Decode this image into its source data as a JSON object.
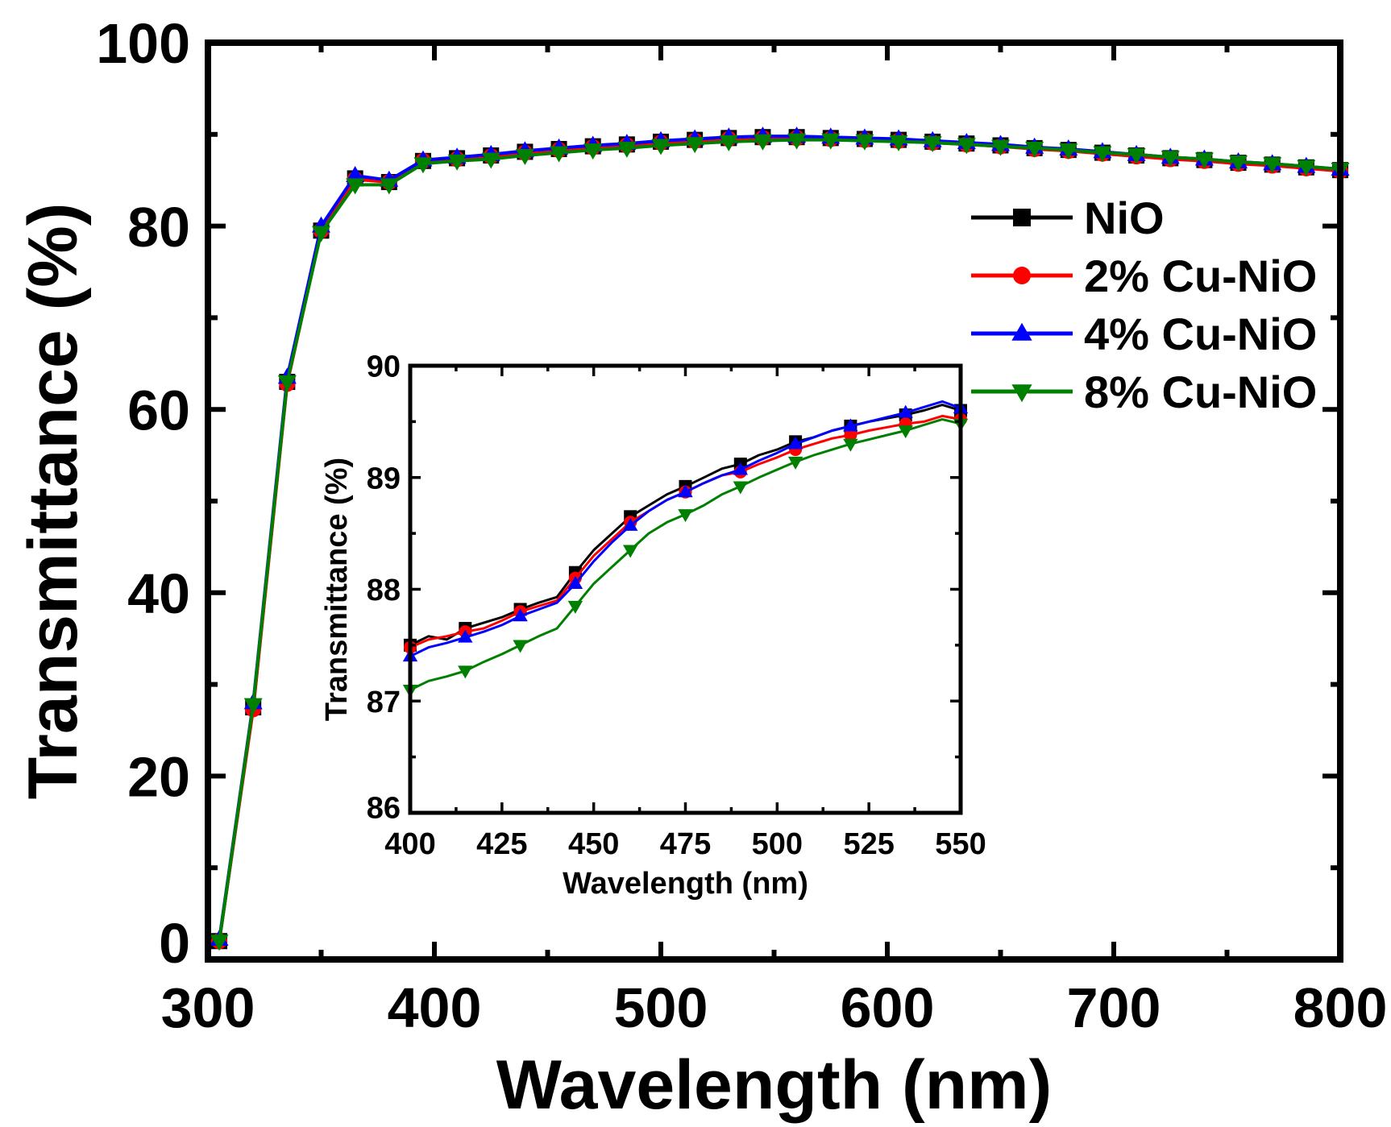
{
  "chart_data": [
    {
      "type": "line",
      "title": "",
      "xlabel": "Wavelength (nm)",
      "ylabel": "Transmittance (%)",
      "xlim": [
        300,
        800
      ],
      "ylim": [
        0,
        100
      ],
      "xticks": [
        300,
        400,
        500,
        600,
        700,
        800
      ],
      "yticks": [
        0,
        20,
        40,
        60,
        80,
        100
      ],
      "grid": false,
      "legend_position": "right",
      "x": [
        305,
        320,
        335,
        350,
        365,
        380,
        395,
        410,
        425,
        440,
        455,
        470,
        485,
        500,
        515,
        530,
        545,
        560,
        575,
        590,
        605,
        620,
        635,
        650,
        665,
        680,
        695,
        710,
        725,
        740,
        755,
        770,
        785,
        800
      ],
      "series": [
        {
          "name": "NiO",
          "color": "#000000",
          "marker": "square",
          "values": [
            2,
            27.5,
            63,
            79.5,
            85.2,
            84.8,
            87.1,
            87.4,
            87.7,
            88.1,
            88.4,
            88.7,
            88.9,
            89.2,
            89.4,
            89.6,
            89.7,
            89.7,
            89.6,
            89.5,
            89.4,
            89.2,
            89.0,
            88.8,
            88.5,
            88.3,
            88.0,
            87.7,
            87.4,
            87.2,
            86.9,
            86.7,
            86.4,
            86.1
          ]
        },
        {
          "name": "2% Cu-NiO",
          "color": "#ff0000",
          "marker": "circle",
          "values": [
            2,
            27.3,
            62.8,
            79.5,
            85.1,
            84.8,
            87.1,
            87.3,
            87.6,
            88.0,
            88.3,
            88.6,
            88.8,
            89.1,
            89.3,
            89.5,
            89.6,
            89.6,
            89.5,
            89.4,
            89.3,
            89.1,
            88.9,
            88.7,
            88.4,
            88.2,
            87.9,
            87.6,
            87.3,
            87.1,
            86.8,
            86.6,
            86.3,
            86.0
          ]
        },
        {
          "name": "4% Cu-NiO",
          "color": "#0000ff",
          "marker": "triangle-up",
          "values": [
            2.2,
            28,
            63.5,
            80,
            85.5,
            85,
            87.2,
            87.5,
            87.8,
            88.2,
            88.5,
            88.8,
            89.0,
            89.3,
            89.5,
            89.7,
            89.8,
            89.8,
            89.7,
            89.6,
            89.5,
            89.3,
            89.1,
            88.9,
            88.6,
            88.4,
            88.1,
            87.8,
            87.5,
            87.3,
            87.0,
            86.8,
            86.5,
            86.2
          ]
        },
        {
          "name": "8% Cu-NiO",
          "color": "#008000",
          "marker": "triangle-down",
          "values": [
            2,
            27.8,
            63,
            79.3,
            84.5,
            84.5,
            86.8,
            87.1,
            87.3,
            87.7,
            88.0,
            88.3,
            88.5,
            88.8,
            89.0,
            89.2,
            89.3,
            89.4,
            89.4,
            89.3,
            89.2,
            89.1,
            88.9,
            88.7,
            88.5,
            88.3,
            88.0,
            87.8,
            87.5,
            87.3,
            87.0,
            86.8,
            86.5,
            86.2
          ]
        }
      ]
    },
    {
      "type": "line",
      "title": "",
      "xlabel": "Wavelength (nm)",
      "ylabel": "Transmittance (%)",
      "xlim": [
        400,
        550
      ],
      "ylim": [
        86,
        90
      ],
      "xticks": [
        400,
        425,
        450,
        475,
        500,
        525,
        550
      ],
      "yticks": [
        86,
        87,
        88,
        89,
        90
      ],
      "grid": false,
      "x": [
        400,
        405,
        410,
        415,
        420,
        425,
        430,
        435,
        440,
        445,
        450,
        455,
        460,
        465,
        470,
        475,
        480,
        485,
        490,
        495,
        500,
        505,
        510,
        515,
        520,
        525,
        530,
        535,
        540,
        545,
        550
      ],
      "series": [
        {
          "name": "NiO",
          "color": "#000000",
          "marker": "square",
          "values": [
            87.5,
            87.58,
            87.55,
            87.65,
            87.7,
            87.75,
            87.82,
            87.88,
            87.93,
            88.15,
            88.35,
            88.5,
            88.65,
            88.75,
            88.85,
            88.92,
            89.0,
            89.08,
            89.12,
            89.2,
            89.25,
            89.32,
            89.36,
            89.42,
            89.46,
            89.5,
            89.53,
            89.56,
            89.6,
            89.65,
            89.6
          ]
        },
        {
          "name": "2% Cu-NiO",
          "color": "#ff0000",
          "marker": "circle",
          "values": [
            87.48,
            87.55,
            87.58,
            87.62,
            87.65,
            87.72,
            87.8,
            87.85,
            87.9,
            88.1,
            88.3,
            88.45,
            88.6,
            88.7,
            88.8,
            88.87,
            88.95,
            89.02,
            89.05,
            89.12,
            89.18,
            89.25,
            89.3,
            89.35,
            89.38,
            89.42,
            89.45,
            89.48,
            89.5,
            89.55,
            89.52
          ]
        },
        {
          "name": "4% Cu-NiO",
          "color": "#0000ff",
          "marker": "triangle-up",
          "values": [
            87.4,
            87.48,
            87.52,
            87.57,
            87.62,
            87.68,
            87.76,
            87.82,
            87.88,
            88.05,
            88.25,
            88.42,
            88.57,
            88.7,
            88.8,
            88.87,
            88.95,
            89.02,
            89.07,
            89.15,
            89.22,
            89.3,
            89.36,
            89.42,
            89.46,
            89.5,
            89.54,
            89.58,
            89.63,
            89.68,
            89.62
          ]
        },
        {
          "name": "8% Cu-NiO",
          "color": "#008000",
          "marker": "triangle-down",
          "values": [
            87.1,
            87.18,
            87.22,
            87.27,
            87.35,
            87.42,
            87.5,
            87.58,
            87.65,
            87.85,
            88.05,
            88.2,
            88.35,
            88.5,
            88.6,
            88.67,
            88.75,
            88.85,
            88.92,
            89.0,
            89.07,
            89.14,
            89.2,
            89.25,
            89.3,
            89.34,
            89.38,
            89.42,
            89.47,
            89.52,
            89.48
          ]
        }
      ]
    }
  ]
}
